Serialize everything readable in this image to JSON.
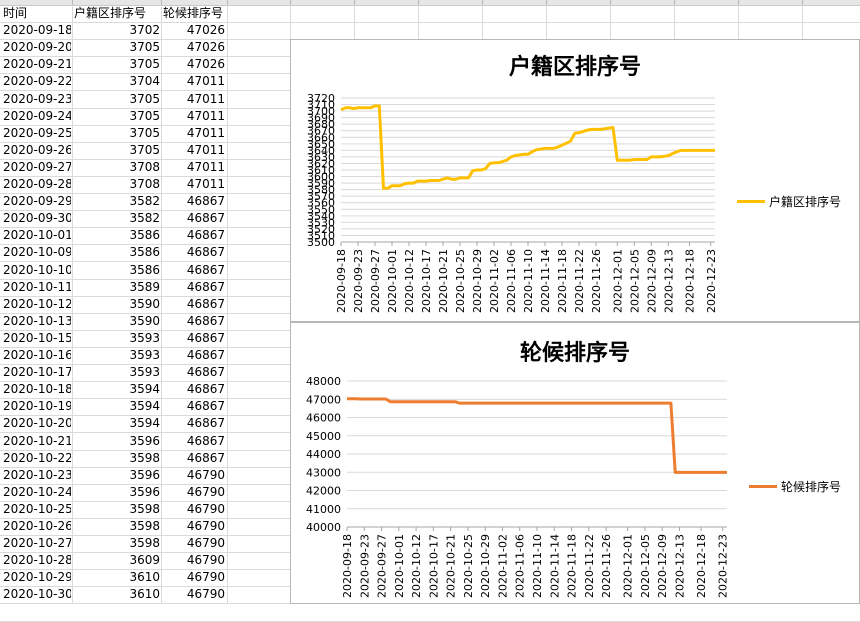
{
  "sheet": {
    "headers": [
      "时间",
      "户籍区排序号",
      "轮候排序号"
    ],
    "rows": [
      [
        "2020-09-18",
        "3702",
        "47026"
      ],
      [
        "2020-09-20",
        "3705",
        "47026"
      ],
      [
        "2020-09-21",
        "3705",
        "47026"
      ],
      [
        "2020-09-22",
        "3704",
        "47011"
      ],
      [
        "2020-09-23",
        "3705",
        "47011"
      ],
      [
        "2020-09-24",
        "3705",
        "47011"
      ],
      [
        "2020-09-25",
        "3705",
        "47011"
      ],
      [
        "2020-09-26",
        "3705",
        "47011"
      ],
      [
        "2020-09-27",
        "3708",
        "47011"
      ],
      [
        "2020-09-28",
        "3708",
        "47011"
      ],
      [
        "2020-09-29",
        "3582",
        "46867"
      ],
      [
        "2020-09-30",
        "3582",
        "46867"
      ],
      [
        "2020-10-01",
        "3586",
        "46867"
      ],
      [
        "2020-10-09",
        "3586",
        "46867"
      ],
      [
        "2020-10-10",
        "3586",
        "46867"
      ],
      [
        "2020-10-11",
        "3589",
        "46867"
      ],
      [
        "2020-10-12",
        "3590",
        "46867"
      ],
      [
        "2020-10-13",
        "3590",
        "46867"
      ],
      [
        "2020-10-15",
        "3593",
        "46867"
      ],
      [
        "2020-10-16",
        "3593",
        "46867"
      ],
      [
        "2020-10-17",
        "3593",
        "46867"
      ],
      [
        "2020-10-18",
        "3594",
        "46867"
      ],
      [
        "2020-10-19",
        "3594",
        "46867"
      ],
      [
        "2020-10-20",
        "3594",
        "46867"
      ],
      [
        "2020-10-21",
        "3596",
        "46867"
      ],
      [
        "2020-10-22",
        "3598",
        "46867"
      ],
      [
        "2020-10-23",
        "3596",
        "46790"
      ],
      [
        "2020-10-24",
        "3596",
        "46790"
      ],
      [
        "2020-10-25",
        "3598",
        "46790"
      ],
      [
        "2020-10-26",
        "3598",
        "46790"
      ],
      [
        "2020-10-27",
        "3598",
        "46790"
      ],
      [
        "2020-10-28",
        "3609",
        "46790"
      ],
      [
        "2020-10-29",
        "3610",
        "46790"
      ],
      [
        "2020-10-30",
        "3610",
        "46790"
      ]
    ]
  },
  "chart_data": [
    {
      "type": "line",
      "title": "户籍区排序号",
      "xlabel": "",
      "ylabel": "",
      "ylim": [
        3500,
        3720
      ],
      "yticks": [
        3500,
        3510,
        3520,
        3530,
        3540,
        3550,
        3560,
        3570,
        3580,
        3590,
        3600,
        3610,
        3620,
        3630,
        3640,
        3650,
        3660,
        3670,
        3680,
        3690,
        3700,
        3710,
        3720
      ],
      "grid": true,
      "legend": "right",
      "color": "#FFC000",
      "x": [
        "2020-09-18",
        "2020-09-20",
        "2020-09-21",
        "2020-09-22",
        "2020-09-23",
        "2020-09-24",
        "2020-09-25",
        "2020-09-26",
        "2020-09-27",
        "2020-09-28",
        "2020-09-29",
        "2020-09-30",
        "2020-10-01",
        "2020-10-09",
        "2020-10-10",
        "2020-10-11",
        "2020-10-12",
        "2020-10-13",
        "2020-10-15",
        "2020-10-16",
        "2020-10-17",
        "2020-10-18",
        "2020-10-19",
        "2020-10-20",
        "2020-10-21",
        "2020-10-22",
        "2020-10-23",
        "2020-10-24",
        "2020-10-25",
        "2020-10-26",
        "2020-10-27",
        "2020-10-28",
        "2020-10-29",
        "2020-10-30",
        "2020-10-31",
        "2020-11-01",
        "2020-11-02",
        "2020-11-03",
        "2020-11-04",
        "2020-11-05",
        "2020-11-06",
        "2020-11-07",
        "2020-11-08",
        "2020-11-09",
        "2020-11-10",
        "2020-11-11",
        "2020-11-12",
        "2020-11-13",
        "2020-11-14",
        "2020-11-15",
        "2020-11-16",
        "2020-11-17",
        "2020-11-18",
        "2020-11-19",
        "2020-11-20",
        "2020-11-21",
        "2020-11-22",
        "2020-11-23",
        "2020-11-24",
        "2020-11-25",
        "2020-11-26",
        "2020-11-27",
        "2020-11-28",
        "2020-11-29",
        "2020-11-30",
        "2020-12-01",
        "2020-12-02",
        "2020-12-03",
        "2020-12-04",
        "2020-12-05",
        "2020-12-06",
        "2020-12-07",
        "2020-12-08",
        "2020-12-09",
        "2020-12-10",
        "2020-12-11",
        "2020-12-12",
        "2020-12-13",
        "2020-12-14",
        "2020-12-15",
        "2020-12-16",
        "2020-12-17",
        "2020-12-18",
        "2020-12-19",
        "2020-12-20",
        "2020-12-21",
        "2020-12-22",
        "2020-12-23",
        "2020-12-24"
      ],
      "xticks": [
        "2020-09-18",
        "2020-09-23",
        "2020-09-27",
        "2020-10-01",
        "2020-10-12",
        "2020-10-17",
        "2020-10-21",
        "2020-10-25",
        "2020-10-29",
        "2020-11-02",
        "2020-11-06",
        "2020-11-10",
        "2020-11-14",
        "2020-11-18",
        "2020-11-22",
        "2020-11-26",
        "2020-12-01",
        "2020-12-05",
        "2020-12-09",
        "2020-12-13",
        "2020-12-18",
        "2020-12-23"
      ],
      "series": [
        {
          "name": "户籍区排序号",
          "values": [
            3702,
            3705,
            3705,
            3704,
            3705,
            3705,
            3705,
            3705,
            3708,
            3708,
            3582,
            3582,
            3586,
            3586,
            3586,
            3589,
            3590,
            3590,
            3593,
            3593,
            3593,
            3594,
            3594,
            3594,
            3596,
            3598,
            3596,
            3596,
            3598,
            3598,
            3598,
            3609,
            3610,
            3610,
            3612,
            3620,
            3621,
            3621,
            3623,
            3625,
            3630,
            3632,
            3633,
            3634,
            3634,
            3638,
            3641,
            3642,
            3643,
            3643,
            3643,
            3645,
            3648,
            3651,
            3654,
            3666,
            3667,
            3669,
            3671,
            3672,
            3672,
            3672,
            3673,
            3674,
            3675,
            3625,
            3625,
            3625,
            3625,
            3626,
            3626,
            3626,
            3626,
            3630,
            3630,
            3630,
            3631,
            3632,
            3635,
            3638,
            3640,
            3640,
            3640,
            3640,
            3640,
            3640,
            3640,
            3640,
            3640
          ]
        }
      ]
    },
    {
      "type": "line",
      "title": "轮候排序号",
      "xlabel": "",
      "ylabel": "",
      "ylim": [
        40000,
        48000
      ],
      "yticks": [
        40000,
        41000,
        42000,
        43000,
        44000,
        45000,
        46000,
        47000,
        48000
      ],
      "grid": true,
      "legend": "right",
      "color": "#ED7D31",
      "x_ref": 0,
      "xticks": [
        "2020-09-18",
        "2020-09-23",
        "2020-09-27",
        "2020-10-01",
        "2020-10-12",
        "2020-10-17",
        "2020-10-21",
        "2020-10-25",
        "2020-10-29",
        "2020-11-02",
        "2020-11-06",
        "2020-11-10",
        "2020-11-14",
        "2020-11-18",
        "2020-11-22",
        "2020-11-26",
        "2020-12-01",
        "2020-12-05",
        "2020-12-09",
        "2020-12-13",
        "2020-12-18",
        "2020-12-23"
      ],
      "series": [
        {
          "name": "轮候排序号",
          "values": [
            47026,
            47026,
            47026,
            47011,
            47011,
            47011,
            47011,
            47011,
            47011,
            47011,
            46867,
            46867,
            46867,
            46867,
            46867,
            46867,
            46867,
            46867,
            46867,
            46867,
            46867,
            46867,
            46867,
            46867,
            46867,
            46867,
            46790,
            46790,
            46790,
            46790,
            46790,
            46790,
            46790,
            46790,
            46790,
            46790,
            46790,
            46790,
            46790,
            46790,
            46790,
            46790,
            46790,
            46790,
            46790,
            46790,
            46790,
            46790,
            46790,
            46790,
            46790,
            46790,
            46790,
            46790,
            46790,
            46790,
            46790,
            46790,
            46790,
            46790,
            46790,
            46790,
            46790,
            46790,
            46790,
            46790,
            46790,
            46790,
            46790,
            46790,
            46790,
            46790,
            46790,
            46790,
            46790,
            46790,
            42993,
            42993,
            42993,
            42993,
            42993,
            42993,
            42993,
            42993,
            42993,
            42993,
            42993,
            42993,
            42993
          ]
        }
      ]
    }
  ]
}
